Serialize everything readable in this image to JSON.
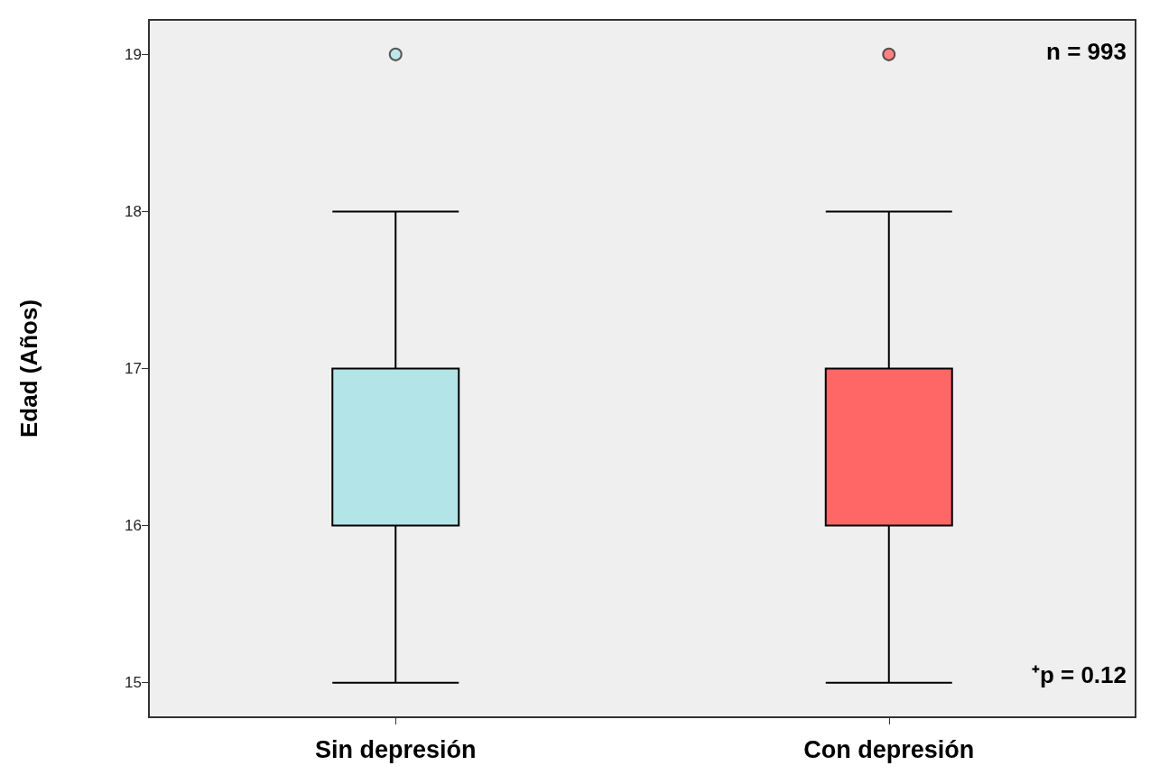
{
  "chart_data": {
    "type": "box",
    "ylabel": "Edad (Años)",
    "categories": [
      "Sin depresión",
      "Con depresión"
    ],
    "boxes": [
      {
        "low": 15,
        "q1": 16,
        "median": 16,
        "q3": 17,
        "high": 18,
        "outliers": [
          19
        ]
      },
      {
        "low": 15,
        "q1": 16,
        "median": 16,
        "q3": 17,
        "high": 18,
        "outliers": [
          19
        ]
      }
    ],
    "colors": [
      "#b3e5e8",
      "#ff6666"
    ],
    "ylim": [
      14.78,
      19.22
    ],
    "yticks": [
      15,
      16,
      17,
      18,
      19
    ],
    "grid": false,
    "annotations": [
      "n = 993",
      "⁺p = 0.12"
    ]
  }
}
